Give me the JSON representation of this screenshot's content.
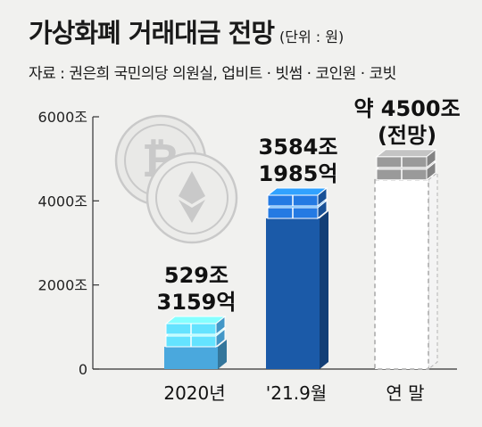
{
  "title": "가상화폐 거래대금 전망",
  "unit": "(단위 : 원)",
  "source": "자료 : 권은희 국민의당 의원실, 업비트 · 빗썸 · 코인원 · 코빗",
  "colors": {
    "bar_2020": "#4aa8dd",
    "bar_2021": "#1b5aa8",
    "bar_estimate": "#ffffff",
    "coin": "#c9c9c9",
    "axis": "#333333"
  },
  "icons": [
    "bitcoin-coin-icon",
    "ethereum-coin-icon"
  ],
  "chart_data": {
    "type": "bar",
    "categories": [
      "2020년",
      "'21.9월",
      "연 말"
    ],
    "values": [
      529.3159,
      3584.1985,
      4500
    ],
    "value_labels": [
      [
        "529조",
        "3159억"
      ],
      [
        "3584조",
        "1985억"
      ],
      [
        "약 4500조",
        "(전망)"
      ]
    ],
    "yticks": [
      "0",
      "2000조",
      "4000조",
      "6000조"
    ],
    "ytick_values": [
      0,
      2000,
      4000,
      6000
    ],
    "ylim": [
      0,
      6000
    ],
    "estimate_index": 2,
    "grid": false
  }
}
